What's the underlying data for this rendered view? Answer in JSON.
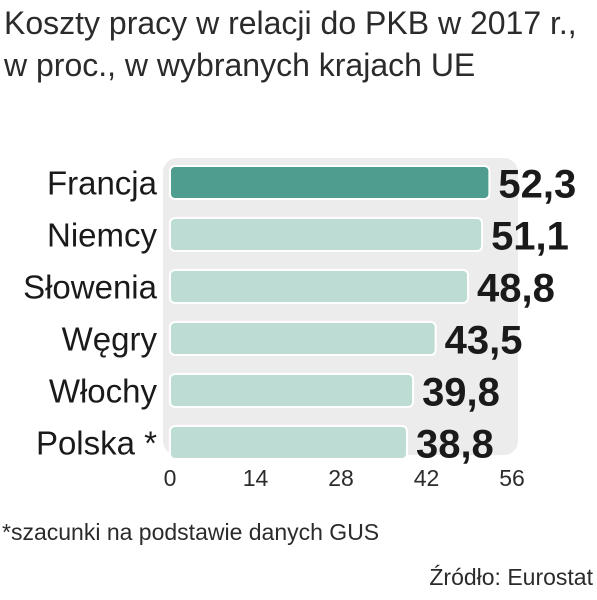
{
  "title": "Koszty pracy w relacji do PKB w 2017 r., w proc., w wybranych krajach UE",
  "footnote": "*szacunki na podstawie danych GUS",
  "source": "Źródło: Eurostat",
  "colors": {
    "highlight_bar": "#4f9d8f",
    "bar": "#bcdcd4",
    "panel": "#ececec",
    "text": "#1a1a1a"
  },
  "chart_data": {
    "type": "bar",
    "orientation": "horizontal",
    "categories": [
      "Francja",
      "Niemcy",
      "Słowenia",
      "Węgry",
      "Włochy",
      "Polska *"
    ],
    "values": [
      52.3,
      51.1,
      48.8,
      43.5,
      39.8,
      38.8
    ],
    "value_labels": [
      "52,3",
      "51,1",
      "48,8",
      "43,5",
      "39,8",
      "38,8"
    ],
    "highlight_index": 0,
    "xlim": [
      0,
      56
    ],
    "xticks": [
      0,
      14,
      28,
      42,
      56
    ],
    "xtick_labels": [
      "0",
      "14",
      "28",
      "42",
      "56"
    ],
    "grid": false,
    "legend": "none"
  }
}
